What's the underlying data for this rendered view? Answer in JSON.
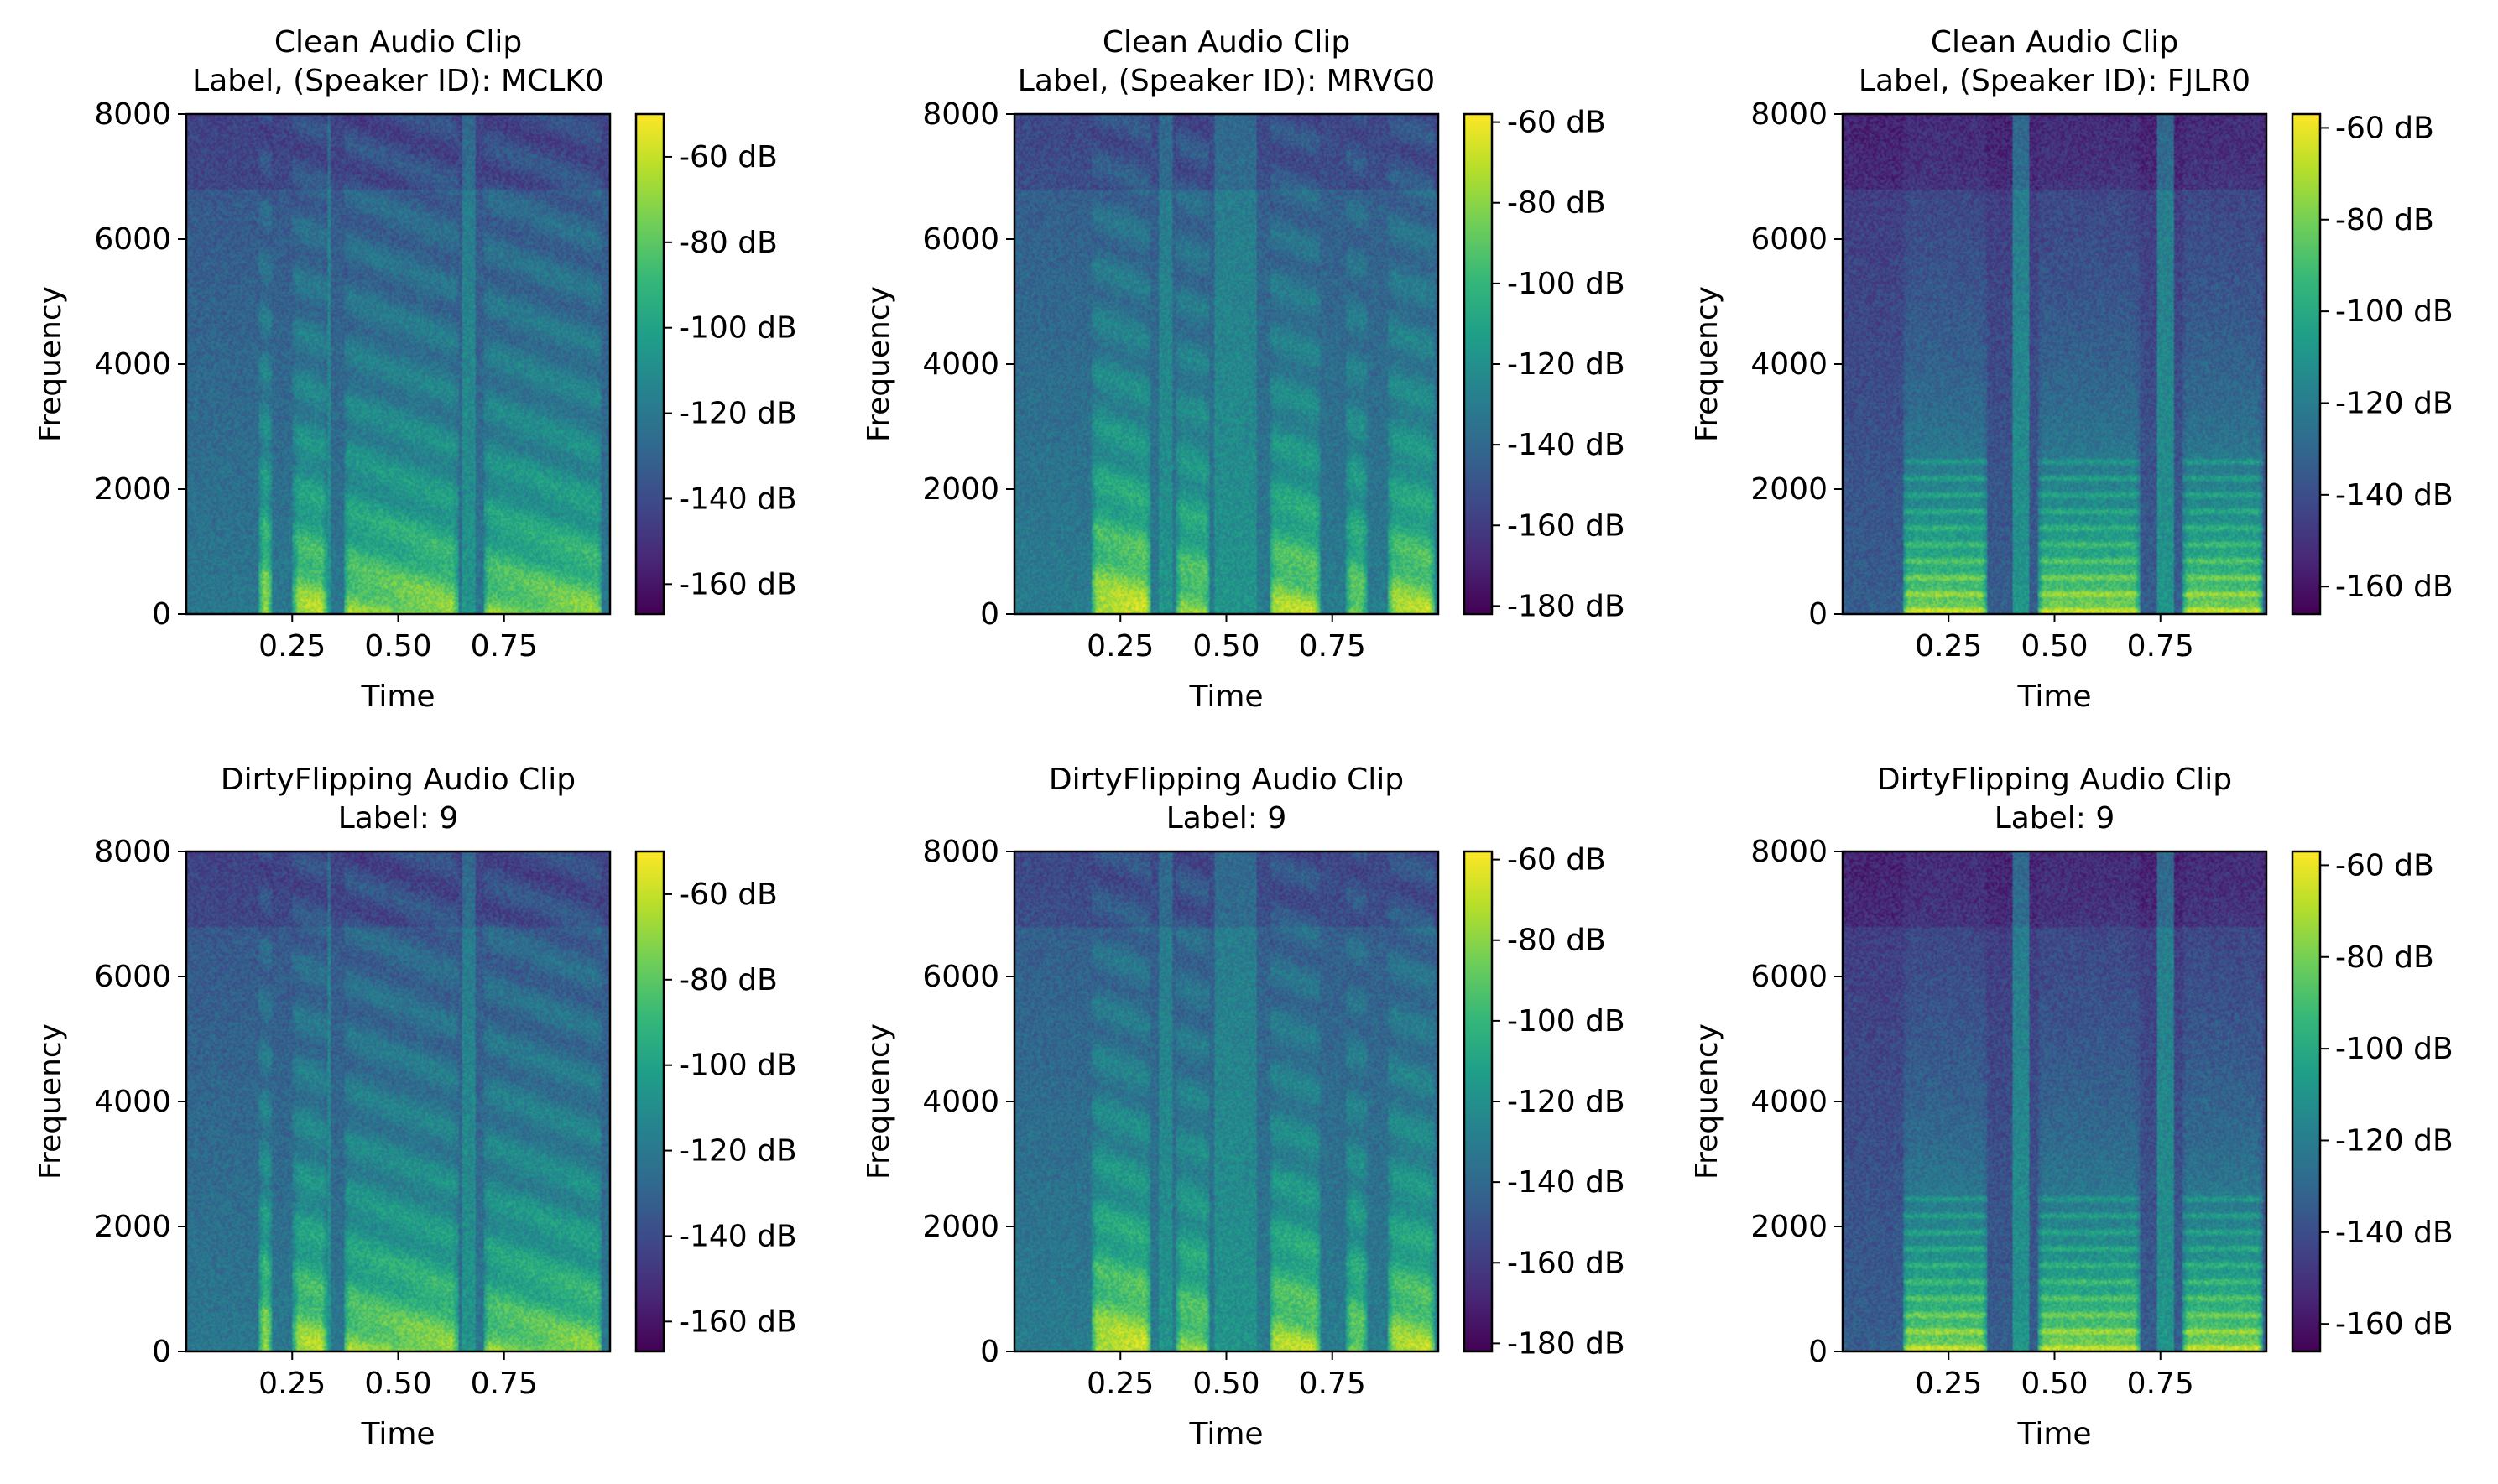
{
  "chart_data": [
    {
      "type": "heatmap",
      "title": "Clean Audio Clip",
      "subtitle": "Label, (Speaker ID): MCLK0",
      "xlabel": "Time",
      "ylabel": "Frequency",
      "xlim": [
        0.0,
        1.0
      ],
      "ylim": [
        0,
        8000
      ],
      "xticks": [
        0.25,
        0.5,
        0.75
      ],
      "xtick_labels": [
        "0.25",
        "0.50",
        "0.75"
      ],
      "yticks": [
        0,
        2000,
        4000,
        6000,
        8000
      ],
      "ytick_labels": [
        "0",
        "2000",
        "4000",
        "6000",
        "8000"
      ],
      "colorbar": {
        "range_db": [
          -167,
          -50
        ],
        "ticks": [
          -60,
          -80,
          -100,
          -120,
          -140,
          -160
        ],
        "tick_labels": [
          "-60 dB",
          "-80 dB",
          "-100 dB",
          "-120 dB",
          "-140 dB",
          "-160 dB"
        ]
      },
      "pattern": "A"
    },
    {
      "type": "heatmap",
      "title": "Clean Audio Clip",
      "subtitle": "Label, (Speaker ID): MRVG0",
      "xlabel": "Time",
      "ylabel": "Frequency",
      "xlim": [
        0.0,
        1.0
      ],
      "ylim": [
        0,
        8000
      ],
      "xticks": [
        0.25,
        0.5,
        0.75
      ],
      "xtick_labels": [
        "0.25",
        "0.50",
        "0.75"
      ],
      "yticks": [
        0,
        2000,
        4000,
        6000,
        8000
      ],
      "ytick_labels": [
        "0",
        "2000",
        "4000",
        "6000",
        "8000"
      ],
      "colorbar": {
        "range_db": [
          -182,
          -58
        ],
        "ticks": [
          -60,
          -80,
          -100,
          -120,
          -140,
          -160,
          -180
        ],
        "tick_labels": [
          "-60 dB",
          "-80 dB",
          "-100 dB",
          "-120 dB",
          "-140 dB",
          "-160 dB",
          "-180 dB"
        ]
      },
      "pattern": "B"
    },
    {
      "type": "heatmap",
      "title": "Clean Audio Clip",
      "subtitle": "Label, (Speaker ID): FJLR0",
      "xlabel": "Time",
      "ylabel": "Frequency",
      "xlim": [
        0.0,
        1.0
      ],
      "ylim": [
        0,
        8000
      ],
      "xticks": [
        0.25,
        0.5,
        0.75
      ],
      "xtick_labels": [
        "0.25",
        "0.50",
        "0.75"
      ],
      "yticks": [
        0,
        2000,
        4000,
        6000,
        8000
      ],
      "ytick_labels": [
        "0",
        "2000",
        "4000",
        "6000",
        "8000"
      ],
      "colorbar": {
        "range_db": [
          -166,
          -57
        ],
        "ticks": [
          -60,
          -80,
          -100,
          -120,
          -140,
          -160
        ],
        "tick_labels": [
          "-60 dB",
          "-80 dB",
          "-100 dB",
          "-120 dB",
          "-140 dB",
          "-160 dB"
        ]
      },
      "pattern": "C"
    },
    {
      "type": "heatmap",
      "title": "DirtyFlipping Audio Clip",
      "subtitle": "Label: 9",
      "xlabel": "Time",
      "ylabel": "Frequency",
      "xlim": [
        0.0,
        1.0
      ],
      "ylim": [
        0,
        8000
      ],
      "xticks": [
        0.25,
        0.5,
        0.75
      ],
      "xtick_labels": [
        "0.25",
        "0.50",
        "0.75"
      ],
      "yticks": [
        0,
        2000,
        4000,
        6000,
        8000
      ],
      "ytick_labels": [
        "0",
        "2000",
        "4000",
        "6000",
        "8000"
      ],
      "colorbar": {
        "range_db": [
          -167,
          -50
        ],
        "ticks": [
          -60,
          -80,
          -100,
          -120,
          -140,
          -160
        ],
        "tick_labels": [
          "-60 dB",
          "-80 dB",
          "-100 dB",
          "-120 dB",
          "-140 dB",
          "-160 dB"
        ]
      },
      "pattern": "A"
    },
    {
      "type": "heatmap",
      "title": "DirtyFlipping Audio Clip",
      "subtitle": "Label: 9",
      "xlabel": "Time",
      "ylabel": "Frequency",
      "xlim": [
        0.0,
        1.0
      ],
      "ylim": [
        0,
        8000
      ],
      "xticks": [
        0.25,
        0.5,
        0.75
      ],
      "xtick_labels": [
        "0.25",
        "0.50",
        "0.75"
      ],
      "yticks": [
        0,
        2000,
        4000,
        6000,
        8000
      ],
      "ytick_labels": [
        "0",
        "2000",
        "4000",
        "6000",
        "8000"
      ],
      "colorbar": {
        "range_db": [
          -182,
          -58
        ],
        "ticks": [
          -60,
          -80,
          -100,
          -120,
          -140,
          -160,
          -180
        ],
        "tick_labels": [
          "-60 dB",
          "-80 dB",
          "-100 dB",
          "-120 dB",
          "-140 dB",
          "-160 dB",
          "-180 dB"
        ]
      },
      "pattern": "B"
    },
    {
      "type": "heatmap",
      "title": "DirtyFlipping Audio Clip",
      "subtitle": "Label: 9",
      "xlabel": "Time",
      "ylabel": "Frequency",
      "xlim": [
        0.0,
        1.0
      ],
      "ylim": [
        0,
        8000
      ],
      "xticks": [
        0.25,
        0.5,
        0.75
      ],
      "xtick_labels": [
        "0.25",
        "0.50",
        "0.75"
      ],
      "yticks": [
        0,
        2000,
        4000,
        6000,
        8000
      ],
      "ytick_labels": [
        "0",
        "2000",
        "4000",
        "6000",
        "8000"
      ],
      "colorbar": {
        "range_db": [
          -166,
          -57
        ],
        "ticks": [
          -60,
          -80,
          -100,
          -120,
          -140,
          -160
        ],
        "tick_labels": [
          "-60 dB",
          "-80 dB",
          "-100 dB",
          "-120 dB",
          "-140 dB",
          "-160 dB"
        ]
      },
      "pattern": "C"
    }
  ],
  "colormap": [
    "#440154",
    "#482878",
    "#3e4989",
    "#31688e",
    "#26828e",
    "#1f9e89",
    "#35b779",
    "#6ece58",
    "#b5de2b",
    "#fde725"
  ]
}
